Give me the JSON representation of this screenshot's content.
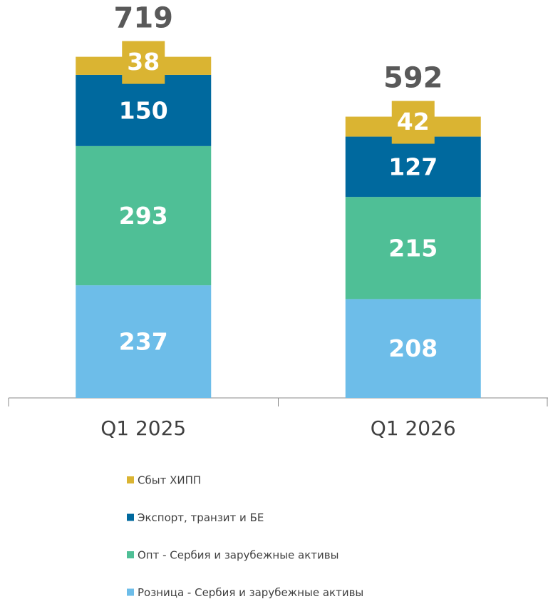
{
  "chart_data": {
    "type": "stacked_bar",
    "categories": [
      "Q1 2025",
      "Q1 2026"
    ],
    "series": [
      {
        "name": "Розница - Сербия и зарубежные активы",
        "color": "#6dbde9",
        "values": [
          237,
          208
        ]
      },
      {
        "name": "Опт - Сербия и зарубежные активы",
        "color": "#4fbf96",
        "values": [
          293,
          215
        ]
      },
      {
        "name": "Экспорт, транзит и БЕ",
        "color": "#00699e",
        "values": [
          150,
          127
        ]
      },
      {
        "name": "Сбыт ХИПП",
        "color": "#dab432",
        "values": [
          38,
          42
        ]
      }
    ],
    "totals": [
      719,
      592
    ],
    "ylim": [
      0,
      800
    ],
    "legend": "bottom"
  }
}
